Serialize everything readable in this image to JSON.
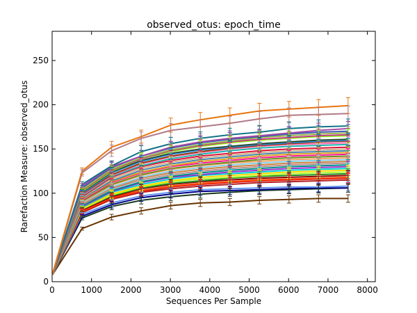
{
  "chart_data": {
    "type": "line",
    "title": "observed_otus: epoch_time",
    "xlabel": "Sequences Per Sample",
    "ylabel": "Rarefaction Measure: observed_otus",
    "xlim": [
      0,
      8200
    ],
    "ylim": [
      0,
      283
    ],
    "xticks": [
      0,
      1000,
      2000,
      3000,
      4000,
      5000,
      6000,
      7000,
      8000
    ],
    "yticks": [
      0,
      50,
      100,
      150,
      200,
      250
    ],
    "grid": false,
    "legend": "none",
    "error_bars": true,
    "x": [
      10,
      760,
      1510,
      2260,
      3010,
      3760,
      4510,
      5260,
      6010,
      6760,
      7510
    ],
    "series": [
      {
        "color": "#e8740c",
        "values": [
          9,
          125,
          152,
          164,
          177,
          183,
          188,
          193,
          195,
          197,
          199
        ]
      },
      {
        "color": "#b07a88",
        "values": [
          8,
          123,
          148,
          162,
          171,
          175,
          179,
          184,
          188,
          189,
          190
        ]
      },
      {
        "color": "#127389",
        "values": [
          8,
          110,
          131,
          147,
          156,
          162,
          166,
          169,
          173,
          175,
          176
        ]
      },
      {
        "color": "#a349a4",
        "values": [
          8,
          108,
          130,
          142,
          152,
          158,
          162,
          165,
          168,
          171,
          173
        ]
      },
      {
        "color": "#3d59b0",
        "values": [
          8,
          106,
          129,
          142,
          151,
          157,
          161,
          164,
          167,
          169,
          170
        ]
      },
      {
        "color": "#9ab84a",
        "values": [
          8,
          104,
          127,
          140,
          149,
          155,
          159,
          163,
          165,
          167,
          168
        ]
      },
      {
        "color": "#c8398c",
        "values": [
          8,
          103,
          126,
          139,
          148,
          154,
          158,
          161,
          163,
          165,
          166
        ]
      },
      {
        "color": "#7fff00",
        "values": [
          8,
          102,
          125,
          139,
          147,
          153,
          157,
          160,
          162,
          164,
          165
        ]
      },
      {
        "color": "#2f4f2f",
        "values": [
          8,
          101,
          124,
          137,
          145,
          150,
          153,
          156,
          158,
          160,
          161
        ]
      },
      {
        "color": "#1e90ff",
        "values": [
          8,
          100,
          123,
          136,
          144,
          149,
          152,
          155,
          157,
          159,
          160
        ]
      },
      {
        "color": "#8b4513",
        "values": [
          8,
          99,
          121,
          134,
          142,
          147,
          151,
          154,
          156,
          158,
          159
        ]
      },
      {
        "color": "#ff69b4",
        "values": [
          8,
          98,
          120,
          133,
          141,
          146,
          150,
          153,
          155,
          156,
          157
        ]
      },
      {
        "color": "#20b2aa",
        "values": [
          8,
          97,
          119,
          131,
          139,
          144,
          148,
          151,
          153,
          154,
          155
        ]
      },
      {
        "color": "#dc143c",
        "values": [
          8,
          96,
          118,
          130,
          137,
          142,
          145,
          148,
          150,
          151,
          152
        ]
      },
      {
        "color": "#d2b48c",
        "values": [
          8,
          95,
          116,
          128,
          135,
          140,
          143,
          146,
          148,
          149,
          150
        ]
      },
      {
        "color": "#4682b4",
        "values": [
          8,
          94,
          114,
          126,
          133,
          138,
          141,
          144,
          146,
          147,
          148
        ]
      },
      {
        "color": "#daa520",
        "values": [
          8,
          93,
          113,
          124,
          131,
          136,
          139,
          142,
          144,
          145,
          146
        ]
      },
      {
        "color": "#ff1493",
        "values": [
          8,
          92,
          112,
          123,
          130,
          134,
          137,
          140,
          142,
          143,
          144
        ]
      },
      {
        "color": "#6b8e23",
        "values": [
          8,
          91,
          110,
          121,
          128,
          132,
          135,
          138,
          140,
          141,
          142
        ]
      },
      {
        "color": "#f4a460",
        "values": [
          8,
          90,
          109,
          120,
          127,
          131,
          134,
          136,
          138,
          139,
          140
        ]
      },
      {
        "color": "#87ceeb",
        "values": [
          8,
          89,
          107,
          118,
          125,
          129,
          132,
          134,
          136,
          137,
          138
        ]
      },
      {
        "color": "#cd853f",
        "values": [
          8,
          88,
          106,
          117,
          123,
          127,
          130,
          132,
          134,
          135,
          136
        ]
      },
      {
        "color": "#bc8f8f",
        "values": [
          8,
          87,
          105,
          115,
          121,
          125,
          128,
          130,
          132,
          133,
          134
        ]
      },
      {
        "color": "#008b8b",
        "values": [
          8,
          86,
          103,
          113,
          119,
          123,
          126,
          128,
          130,
          131,
          132
        ]
      },
      {
        "color": "#9932cc",
        "values": [
          8,
          85,
          102,
          112,
          118,
          121,
          124,
          126,
          128,
          129,
          130
        ]
      },
      {
        "color": "#00ced1",
        "values": [
          8,
          84,
          101,
          110,
          116,
          120,
          122,
          124,
          126,
          127,
          128
        ]
      },
      {
        "color": "#ffd700",
        "values": [
          8,
          83,
          99,
          108,
          114,
          118,
          120,
          122,
          124,
          125,
          126
        ]
      },
      {
        "color": "#adff2f",
        "values": [
          8,
          82,
          98,
          107,
          113,
          116,
          118,
          120,
          122,
          123,
          124
        ]
      },
      {
        "color": "#228b22",
        "values": [
          8,
          82,
          97,
          106,
          111,
          114,
          117,
          119,
          120,
          121,
          122
        ]
      },
      {
        "color": "#8b0000",
        "values": [
          8,
          81,
          96,
          105,
          110,
          113,
          115,
          117,
          118,
          119,
          120
        ]
      },
      {
        "color": "#ff4500",
        "values": [
          8,
          80,
          95,
          103,
          108,
          111,
          113,
          115,
          116,
          117,
          118
        ]
      },
      {
        "color": "#e41a1c",
        "values": [
          8,
          79,
          94,
          102,
          107,
          110,
          112,
          114,
          115,
          116,
          117
        ]
      },
      {
        "color": "#b22222",
        "values": [
          8,
          78,
          93,
          101,
          105,
          108,
          110,
          112,
          113,
          114,
          115
        ]
      },
      {
        "color": "#6495ed",
        "values": [
          8,
          76,
          89,
          97,
          101,
          104,
          105,
          106,
          107,
          107,
          108
        ]
      },
      {
        "color": "#00008b",
        "values": [
          8,
          74,
          87,
          95,
          99,
          102,
          103,
          104,
          105,
          106,
          106
        ]
      },
      {
        "color": "#1a3a1a",
        "values": [
          8,
          72,
          85,
          92,
          96,
          99,
          101,
          103,
          104,
          105,
          106
        ]
      },
      {
        "color": "#663300",
        "values": [
          8,
          60,
          73,
          80,
          86,
          89,
          90,
          92,
          93,
          94,
          94
        ]
      }
    ]
  }
}
